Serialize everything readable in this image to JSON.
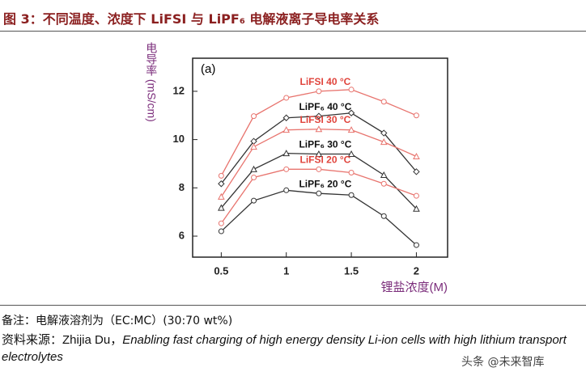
{
  "header": {
    "title": "图 3：不同温度、浓度下 LiFSI 与 LiPF₆ 电解液离子导电率关系"
  },
  "chart_data": {
    "type": "line",
    "panel_label": "(a)",
    "y_label": "电导率 (mS/cm)",
    "x_label": "锂盐浓度(M)",
    "x": [
      0.5,
      0.75,
      1,
      1.25,
      1.5,
      1.75,
      2
    ],
    "xlim": [
      0.28,
      2.24
    ],
    "xticks": [
      0.5,
      1,
      1.5,
      2
    ],
    "ylim": [
      5.13,
      13.37
    ],
    "yticks": [
      6,
      8,
      10,
      12
    ],
    "series": [
      {
        "name": "LiFSI 40 °C",
        "color": "#e8746e",
        "marker": "circle",
        "values": [
          8.5,
          10.97,
          11.73,
          12.0,
          12.07,
          11.57,
          11.0
        ]
      },
      {
        "name": "LiPF₆ 40 °C",
        "color": "#333333",
        "marker": "diamond",
        "values": [
          8.17,
          9.93,
          10.9,
          10.97,
          11.1,
          10.27,
          8.67
        ]
      },
      {
        "name": "LiFSI 30 °C",
        "color": "#e8746e",
        "marker": "triangle",
        "values": [
          7.63,
          9.7,
          10.4,
          10.43,
          10.4,
          9.9,
          9.3
        ]
      },
      {
        "name": "LiPF₆ 30 °C",
        "color": "#333333",
        "marker": "triangle",
        "values": [
          7.17,
          8.77,
          9.43,
          9.4,
          9.4,
          8.53,
          7.13
        ]
      },
      {
        "name": "LiFSI 20 °C",
        "color": "#e8746e",
        "marker": "circle",
        "values": [
          6.53,
          8.43,
          8.77,
          8.77,
          8.63,
          8.17,
          7.67
        ]
      },
      {
        "name": "LiPF₆ 20 °C",
        "color": "#333333",
        "marker": "circle",
        "values": [
          6.2,
          7.47,
          7.9,
          7.77,
          7.7,
          6.83,
          5.63
        ]
      }
    ]
  },
  "notes": {
    "remark": "备注：电解液溶剂为（EC:MC）(30:70 wt%)",
    "source_label": "资料来源：",
    "source_author": "Zhijia Du，",
    "source_title": "Enabling fast charging of high energy density Li-ion cells with high lithium transport electrolytes"
  },
  "watermark": "头条 @未来智库"
}
